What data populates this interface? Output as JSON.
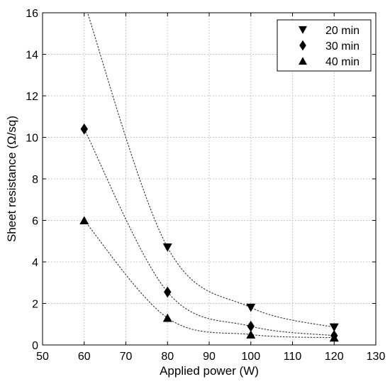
{
  "chart_data": {
    "type": "scatter",
    "xlabel": "Applied power (W)",
    "ylabel": "Sheet resistance (Ω/sq)",
    "xlim": [
      50,
      130
    ],
    "ylim": [
      0,
      16
    ],
    "xticks": [
      50,
      60,
      70,
      80,
      90,
      100,
      110,
      120,
      130
    ],
    "yticks": [
      0,
      2,
      4,
      6,
      8,
      10,
      12,
      14,
      16
    ],
    "grid": true,
    "legend_position": "top-right",
    "series": [
      {
        "name": "20 min",
        "marker": "triangle-down",
        "x": [
          80,
          100,
          120
        ],
        "y": [
          4.7,
          1.8,
          0.85
        ],
        "fit_y": [
          16.5,
          4.7,
          1.8,
          0.85
        ]
      },
      {
        "name": "30 min",
        "marker": "diamond",
        "x": [
          60,
          80,
          100,
          120
        ],
        "y": [
          10.4,
          2.55,
          0.9,
          0.45
        ]
      },
      {
        "name": "40 min",
        "marker": "triangle-up",
        "x": [
          60,
          80,
          100,
          120
        ],
        "y": [
          6.0,
          1.3,
          0.5,
          0.35
        ]
      }
    ]
  }
}
